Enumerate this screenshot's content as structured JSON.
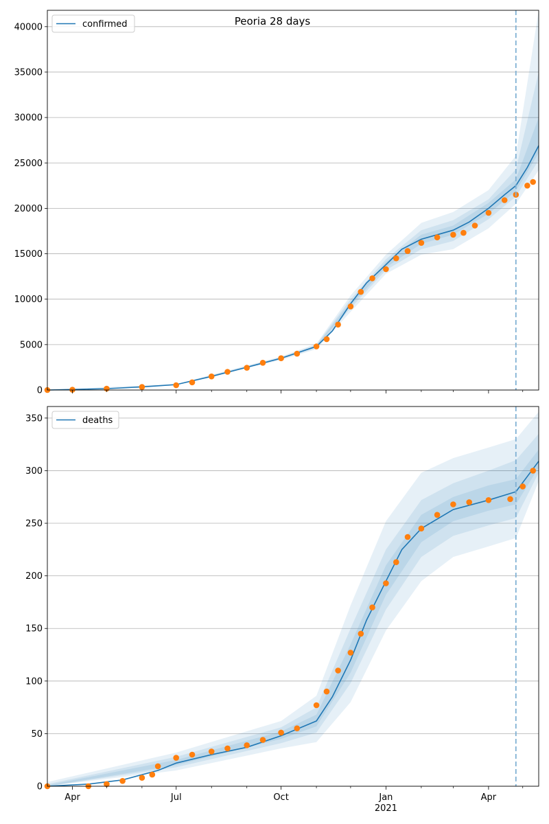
{
  "figure_title": "Peoria 28 days",
  "colors": {
    "model_line": "#1f77b4",
    "observed_points": "#ff7f0e",
    "band": "#1f77b4",
    "grid": "#b0b0b0",
    "forecast_start_line": "#7fb0d3"
  },
  "x_axis": {
    "start_date": "2020-03-10",
    "end_date": "2021-05-15",
    "forecast_start": "2021-04-25",
    "tick_labels": [
      {
        "date": "2020-04-01",
        "label": "Apr"
      },
      {
        "date": "2020-07-01",
        "label": "Jul"
      },
      {
        "date": "2020-10-01",
        "label": "Oct"
      },
      {
        "date": "2021-01-01",
        "label": "Jan",
        "sublabel": "2021"
      },
      {
        "date": "2021-04-01",
        "label": "Apr"
      }
    ],
    "minor_ticks": [
      "2020-05-01",
      "2020-06-01",
      "2020-08-01",
      "2020-09-01",
      "2020-11-01",
      "2020-12-01",
      "2021-02-01",
      "2021-03-01",
      "2021-05-01"
    ]
  },
  "chart_data": [
    {
      "type": "line",
      "legend": [
        "confirmed"
      ],
      "legend_position": "upper left",
      "grid": "horizontal",
      "ylim": [
        0,
        41800
      ],
      "yticks": [
        0,
        5000,
        10000,
        15000,
        20000,
        25000,
        30000,
        35000,
        40000
      ],
      "model": {
        "name": "confirmed",
        "points": [
          [
            "2020-03-10",
            0
          ],
          [
            "2020-05-01",
            150
          ],
          [
            "2020-06-01",
            350
          ],
          [
            "2020-07-01",
            600
          ],
          [
            "2020-08-01",
            1500
          ],
          [
            "2020-09-01",
            2500
          ],
          [
            "2020-10-01",
            3500
          ],
          [
            "2020-11-01",
            4800
          ],
          [
            "2020-11-15",
            6500
          ],
          [
            "2020-12-01",
            9500
          ],
          [
            "2020-12-15",
            11800
          ],
          [
            "2021-01-01",
            13800
          ],
          [
            "2021-01-15",
            15500
          ],
          [
            "2021-02-01",
            16600
          ],
          [
            "2021-02-15",
            17100
          ],
          [
            "2021-03-01",
            17600
          ],
          [
            "2021-03-15",
            18500
          ],
          [
            "2021-04-01",
            20000
          ],
          [
            "2021-04-15",
            21500
          ],
          [
            "2021-04-25",
            22500
          ],
          [
            "2021-05-05",
            24500
          ],
          [
            "2021-05-15",
            26900
          ]
        ]
      },
      "bands": {
        "lower": [
          [
            [
              "2020-03-10",
              0
            ],
            [
              "2020-07-01",
              550
            ],
            [
              "2020-10-01",
              3300
            ],
            [
              "2020-11-01",
              4500
            ],
            [
              "2020-12-01",
              8600
            ],
            [
              "2021-01-01",
              12800
            ],
            [
              "2021-02-01",
              14900
            ],
            [
              "2021-03-01",
              15500
            ],
            [
              "2021-04-01",
              17800
            ],
            [
              "2021-04-25",
              20500
            ],
            [
              "2021-05-15",
              24200
            ]
          ],
          [
            [
              "2020-03-10",
              0
            ],
            [
              "2020-07-01",
              570
            ],
            [
              "2020-10-01",
              3400
            ],
            [
              "2020-11-01",
              4600
            ],
            [
              "2020-12-01",
              9000
            ],
            [
              "2021-01-01",
              13200
            ],
            [
              "2021-02-01",
              15500
            ],
            [
              "2021-03-01",
              16400
            ],
            [
              "2021-04-01",
              18800
            ],
            [
              "2021-04-25",
              21300
            ],
            [
              "2021-05-15",
              25300
            ]
          ],
          [
            [
              "2020-03-10",
              0
            ],
            [
              "2020-07-01",
              585
            ],
            [
              "2020-10-01",
              3450
            ],
            [
              "2020-11-01",
              4700
            ],
            [
              "2020-12-01",
              9300
            ],
            [
              "2021-01-01",
              13500
            ],
            [
              "2021-02-01",
              16100
            ],
            [
              "2021-03-01",
              17100
            ],
            [
              "2021-04-01",
              19400
            ],
            [
              "2021-04-25",
              21900
            ],
            [
              "2021-05-15",
              26100
            ]
          ]
        ],
        "upper": [
          [
            [
              "2020-03-10",
              0
            ],
            [
              "2020-07-01",
              650
            ],
            [
              "2020-10-01",
              3700
            ],
            [
              "2020-11-01",
              5100
            ],
            [
              "2020-12-01",
              10400
            ],
            [
              "2021-01-01",
              14900
            ],
            [
              "2021-02-01",
              18400
            ],
            [
              "2021-03-01",
              19600
            ],
            [
              "2021-04-01",
              22000
            ],
            [
              "2021-04-25",
              25800
            ],
            [
              "2021-05-15",
              41800
            ]
          ],
          [
            [
              "2020-03-10",
              0
            ],
            [
              "2020-07-01",
              630
            ],
            [
              "2020-10-01",
              3600
            ],
            [
              "2020-11-01",
              5000
            ],
            [
              "2020-12-01",
              10000
            ],
            [
              "2021-01-01",
              14400
            ],
            [
              "2021-02-01",
              17600
            ],
            [
              "2021-03-01",
              18700
            ],
            [
              "2021-04-01",
              21000
            ],
            [
              "2021-04-25",
              24300
            ],
            [
              "2021-05-15",
              35000
            ]
          ],
          [
            [
              "2020-03-10",
              0
            ],
            [
              "2020-07-01",
              615
            ],
            [
              "2020-10-01",
              3550
            ],
            [
              "2020-11-01",
              4900
            ],
            [
              "2020-12-01",
              9700
            ],
            [
              "2021-01-01",
              14100
            ],
            [
              "2021-02-01",
              17100
            ],
            [
              "2021-03-01",
              18100
            ],
            [
              "2021-04-01",
              20600
            ],
            [
              "2021-04-25",
              23200
            ],
            [
              "2021-05-15",
              30000
            ]
          ]
        ]
      },
      "observed": [
        [
          "2020-03-10",
          0
        ],
        [
          "2020-04-01",
          30
        ],
        [
          "2020-05-01",
          150
        ],
        [
          "2020-06-01",
          330
        ],
        [
          "2020-07-01",
          530
        ],
        [
          "2020-07-15",
          850
        ],
        [
          "2020-08-01",
          1500
        ],
        [
          "2020-08-15",
          2000
        ],
        [
          "2020-09-01",
          2450
        ],
        [
          "2020-09-15",
          3000
        ],
        [
          "2020-10-01",
          3500
        ],
        [
          "2020-10-15",
          4000
        ],
        [
          "2020-11-01",
          4800
        ],
        [
          "2020-11-10",
          5600
        ],
        [
          "2020-11-20",
          7200
        ],
        [
          "2020-12-01",
          9200
        ],
        [
          "2020-12-10",
          10800
        ],
        [
          "2020-12-20",
          12300
        ],
        [
          "2021-01-01",
          13300
        ],
        [
          "2021-01-10",
          14500
        ],
        [
          "2021-01-20",
          15300
        ],
        [
          "2021-02-01",
          16200
        ],
        [
          "2021-02-15",
          16800
        ],
        [
          "2021-03-01",
          17100
        ],
        [
          "2021-03-10",
          17300
        ],
        [
          "2021-03-20",
          18100
        ],
        [
          "2021-04-01",
          19500
        ],
        [
          "2021-04-15",
          20900
        ],
        [
          "2021-04-25",
          21500
        ],
        [
          "2021-05-05",
          22500
        ],
        [
          "2021-05-10",
          22900
        ]
      ]
    },
    {
      "type": "line",
      "legend": [
        "deaths"
      ],
      "legend_position": "upper left",
      "grid": "horizontal",
      "ylim": [
        0,
        361
      ],
      "yticks": [
        0,
        50,
        100,
        150,
        200,
        250,
        300,
        350
      ],
      "model": {
        "name": "deaths",
        "points": [
          [
            "2020-03-10",
            0
          ],
          [
            "2020-04-15",
            2
          ],
          [
            "2020-05-15",
            6
          ],
          [
            "2020-06-15",
            15
          ],
          [
            "2020-07-01",
            22
          ],
          [
            "2020-08-01",
            30
          ],
          [
            "2020-09-01",
            37
          ],
          [
            "2020-10-01",
            48
          ],
          [
            "2020-11-01",
            62
          ],
          [
            "2020-11-15",
            85
          ],
          [
            "2020-12-01",
            120
          ],
          [
            "2020-12-15",
            158
          ],
          [
            "2021-01-01",
            195
          ],
          [
            "2021-01-15",
            225
          ],
          [
            "2021-02-01",
            245
          ],
          [
            "2021-03-01",
            263
          ],
          [
            "2021-04-01",
            272
          ],
          [
            "2021-04-25",
            280
          ],
          [
            "2021-05-15",
            309
          ]
        ]
      },
      "bands": {
        "lower": [
          [
            [
              "2020-03-10",
              0
            ],
            [
              "2020-07-01",
              15
            ],
            [
              "2020-10-01",
              36
            ],
            [
              "2020-11-01",
              42
            ],
            [
              "2020-12-01",
              80
            ],
            [
              "2021-01-01",
              148
            ],
            [
              "2021-02-01",
              195
            ],
            [
              "2021-03-01",
              218
            ],
            [
              "2021-04-01",
              228
            ],
            [
              "2021-04-25",
              236
            ],
            [
              "2021-05-15",
              290
            ]
          ],
          [
            [
              "2020-03-10",
              0
            ],
            [
              "2020-07-01",
              18
            ],
            [
              "2020-10-01",
              41
            ],
            [
              "2020-11-01",
              51
            ],
            [
              "2020-12-01",
              98
            ],
            [
              "2021-01-01",
              168
            ],
            [
              "2021-02-01",
              218
            ],
            [
              "2021-03-01",
              238
            ],
            [
              "2021-04-01",
              248
            ],
            [
              "2021-04-25",
              255
            ],
            [
              "2021-05-15",
              298
            ]
          ],
          [
            [
              "2020-03-10",
              0
            ],
            [
              "2020-07-01",
              20
            ],
            [
              "2020-10-01",
              45
            ],
            [
              "2020-11-01",
              57
            ],
            [
              "2020-12-01",
              108
            ],
            [
              "2021-01-01",
              182
            ],
            [
              "2021-02-01",
              232
            ],
            [
              "2021-03-01",
              252
            ],
            [
              "2021-04-01",
              262
            ],
            [
              "2021-04-25",
              268
            ],
            [
              "2021-05-15",
              303
            ]
          ]
        ],
        "upper": [
          [
            [
              "2020-03-10",
              4
            ],
            [
              "2020-07-01",
              32
            ],
            [
              "2020-10-01",
              62
            ],
            [
              "2020-11-01",
              86
            ],
            [
              "2020-12-01",
              172
            ],
            [
              "2021-01-01",
              252
            ],
            [
              "2021-02-01",
              298
            ],
            [
              "2021-03-01",
              312
            ],
            [
              "2021-04-01",
              322
            ],
            [
              "2021-04-25",
              330
            ],
            [
              "2021-05-15",
              356
            ]
          ],
          [
            [
              "2020-03-10",
              2
            ],
            [
              "2020-07-01",
              28
            ],
            [
              "2020-10-01",
              56
            ],
            [
              "2020-11-01",
              75
            ],
            [
              "2020-12-01",
              150
            ],
            [
              "2021-01-01",
              225
            ],
            [
              "2021-02-01",
              272
            ],
            [
              "2021-03-01",
              288
            ],
            [
              "2021-04-01",
              300
            ],
            [
              "2021-04-25",
              310
            ],
            [
              "2021-05-15",
              335
            ]
          ],
          [
            [
              "2020-03-10",
              1
            ],
            [
              "2020-07-01",
              25
            ],
            [
              "2020-10-01",
              52
            ],
            [
              "2020-11-01",
              68
            ],
            [
              "2020-12-01",
              135
            ],
            [
              "2021-01-01",
              210
            ],
            [
              "2021-02-01",
              258
            ],
            [
              "2021-03-01",
              275
            ],
            [
              "2021-04-01",
              286
            ],
            [
              "2021-04-25",
              292
            ],
            [
              "2021-05-15",
              320
            ]
          ]
        ]
      },
      "observed": [
        [
          "2020-03-10",
          0
        ],
        [
          "2020-04-15",
          0
        ],
        [
          "2020-05-01",
          2
        ],
        [
          "2020-05-15",
          5
        ],
        [
          "2020-06-01",
          8
        ],
        [
          "2020-06-10",
          11
        ],
        [
          "2020-06-15",
          19
        ],
        [
          "2020-07-01",
          27
        ],
        [
          "2020-07-15",
          30
        ],
        [
          "2020-08-01",
          33
        ],
        [
          "2020-08-15",
          36
        ],
        [
          "2020-09-01",
          39
        ],
        [
          "2020-09-15",
          44
        ],
        [
          "2020-10-01",
          51
        ],
        [
          "2020-10-15",
          55
        ],
        [
          "2020-11-01",
          77
        ],
        [
          "2020-11-10",
          90
        ],
        [
          "2020-11-20",
          110
        ],
        [
          "2020-12-01",
          127
        ],
        [
          "2020-12-10",
          145
        ],
        [
          "2020-12-20",
          170
        ],
        [
          "2021-01-01",
          193
        ],
        [
          "2021-01-10",
          213
        ],
        [
          "2021-01-20",
          237
        ],
        [
          "2021-02-01",
          245
        ],
        [
          "2021-02-15",
          258
        ],
        [
          "2021-03-01",
          268
        ],
        [
          "2021-03-15",
          270
        ],
        [
          "2021-04-01",
          272
        ],
        [
          "2021-04-20",
          273
        ],
        [
          "2021-05-01",
          285
        ],
        [
          "2021-05-10",
          300
        ]
      ]
    }
  ]
}
